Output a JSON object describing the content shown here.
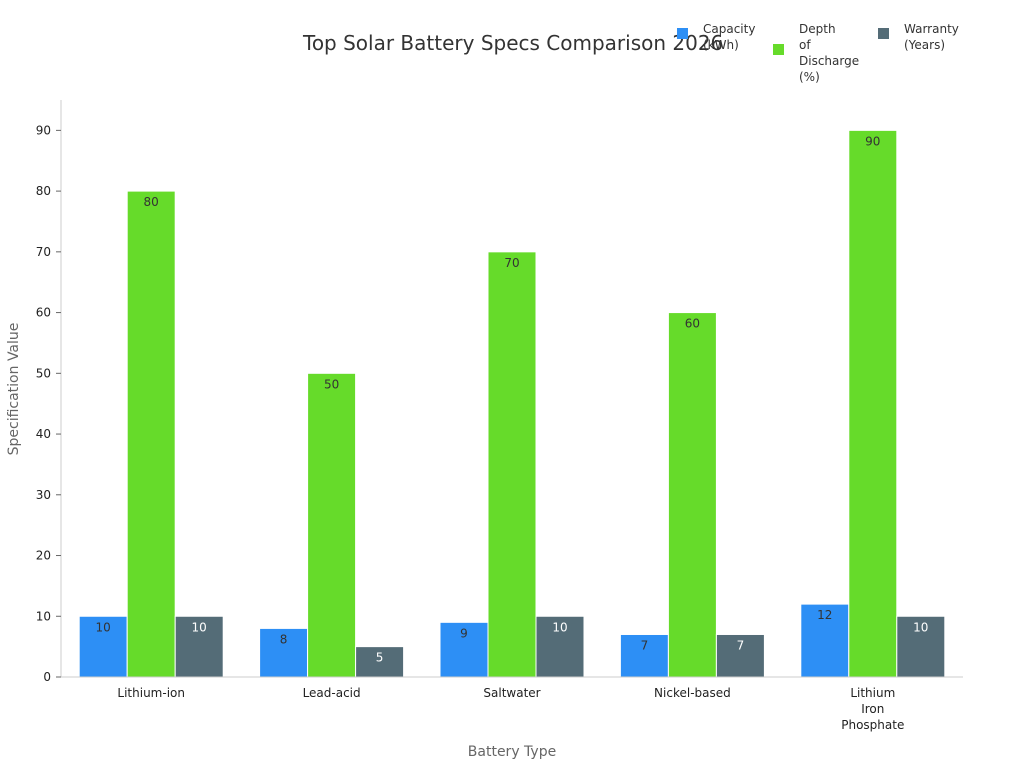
{
  "chart_data": {
    "type": "bar",
    "title": "Top Solar Battery Specs Comparison 2026",
    "xlabel": "Battery Type",
    "ylabel": "Specification Value",
    "ylim": [
      0,
      95
    ],
    "yticks": [
      0,
      10,
      20,
      30,
      40,
      50,
      60,
      70,
      80,
      90
    ],
    "categories": [
      [
        "Lithium-ion"
      ],
      [
        "Lead-acid"
      ],
      [
        "Saltwater"
      ],
      [
        "Nickel-based"
      ],
      [
        "Lithium",
        "Iron",
        "Phosphate"
      ]
    ],
    "series": [
      {
        "name": [
          "Capacity",
          "(kWh)"
        ],
        "values": [
          10,
          8,
          9,
          7,
          12
        ],
        "color": "#2d8ff5",
        "label_color": "#333333"
      },
      {
        "name": [
          "Depth",
          "of",
          "Discharge",
          "(%)"
        ],
        "values": [
          80,
          50,
          70,
          60,
          90
        ],
        "color": "#66db2a",
        "label_color": "#333333"
      },
      {
        "name": [
          "Warranty",
          "(Years)"
        ],
        "values": [
          10,
          5,
          10,
          7,
          10
        ],
        "color": "#546c77",
        "label_color": "#ffffff"
      }
    ],
    "grid": false,
    "legend_position": "top-right"
  }
}
